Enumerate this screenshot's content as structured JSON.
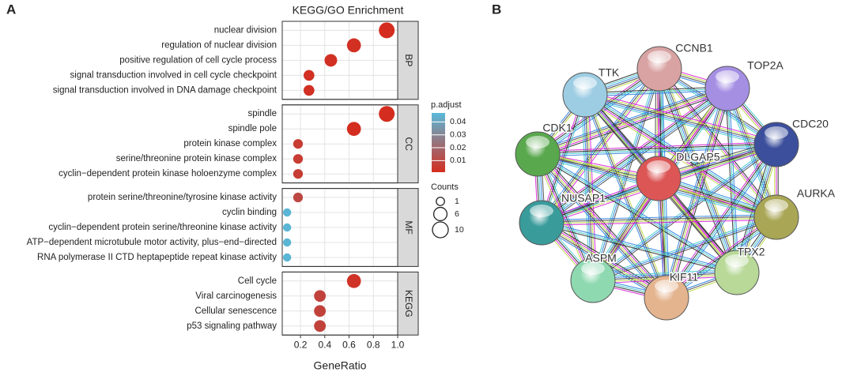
{
  "panel_labels": [
    "A",
    "B"
  ],
  "chart_data": {
    "type": "dot",
    "title": "KEGG/GO Enrichment",
    "x_label": "GeneRatio",
    "xlim": [
      0.05,
      1.0
    ],
    "xticks": [
      0.2,
      0.4,
      0.6,
      0.8,
      {
        "value": 1,
        "label": "1.0"
      }
    ],
    "grid": true,
    "facets": [
      {
        "name": "BP",
        "categories": [
          "nuclear division",
          "regulation of nuclear division",
          "positive regulation of cell cycle process",
          "signal transduction involved in cell cycle checkpoint",
          "signal transduction involved in DNA damage checkpoint"
        ],
        "values": [
          0.91,
          0.64,
          0.45,
          0.27,
          0.27
        ],
        "p_adjust": [
          0.001,
          0.002,
          0.002,
          0.002,
          0.002
        ],
        "counts": [
          10,
          7,
          5,
          3,
          3
        ]
      },
      {
        "name": "CC",
        "categories": [
          "spindle",
          "spindle pole",
          "protein kinase complex",
          "serine/threonine protein kinase complex",
          "cyclin−dependent protein kinase holoenzyme complex"
        ],
        "values": [
          0.91,
          0.64,
          0.18,
          0.18,
          0.18
        ],
        "p_adjust": [
          0.001,
          0.001,
          0.006,
          0.006,
          0.006
        ],
        "counts": [
          10,
          7,
          2,
          2,
          2
        ]
      },
      {
        "name": "MF",
        "categories": [
          "protein serine/threonine/tyrosine kinase activity",
          "cyclin binding",
          "cyclin−dependent protein serine/threonine kinase activity",
          "ATP−dependent microtubule motor activity, plus−end−directed",
          "RNA polymerase II CTD heptapeptide repeat kinase activity"
        ],
        "values": [
          0.18,
          0.09,
          0.09,
          0.09,
          0.09
        ],
        "p_adjust": [
          0.01,
          0.046,
          0.046,
          0.046,
          0.046
        ],
        "counts": [
          2,
          1,
          1,
          1,
          1
        ]
      },
      {
        "name": "KEGG",
        "categories": [
          "Cell cycle",
          "Viral carcinogenesis",
          "Cellular senescence",
          "p53 signaling pathway"
        ],
        "values": [
          0.64,
          0.36,
          0.36,
          0.36
        ],
        "p_adjust": [
          0.003,
          0.008,
          0.008,
          0.008
        ],
        "counts": [
          7,
          4,
          4,
          4
        ]
      }
    ],
    "color_scale": {
      "title": "p.adjust",
      "lim": [
        0.001,
        0.047
      ],
      "ticks": [
        0.01,
        0.02,
        0.03,
        0.04
      ],
      "low": "#d42d1f",
      "high": "#58b9d9"
    },
    "size_legend": {
      "title": "Counts",
      "values": [
        1,
        6,
        10
      ]
    }
  },
  "network": {
    "nodes": [
      {
        "label": "CCNB1",
        "color": "#d9a3a3"
      },
      {
        "label": "TOP2A",
        "color": "#a58fe3"
      },
      {
        "label": "TTK",
        "color": "#9dcde3"
      },
      {
        "label": "CDC20",
        "color": "#3c4f9c"
      },
      {
        "label": "CDK1",
        "color": "#5aa84e"
      },
      {
        "label": "DLGAP5",
        "color": "#dc5656"
      },
      {
        "label": "AURKA",
        "color": "#a9a655"
      },
      {
        "label": "NUSAP1",
        "color": "#3a9b9b"
      },
      {
        "label": "TPX2",
        "color": "#b8d998"
      },
      {
        "label": "ASPM",
        "color": "#8fd9b1"
      },
      {
        "label": "KIF11",
        "color": "#e4b48f"
      }
    ]
  }
}
